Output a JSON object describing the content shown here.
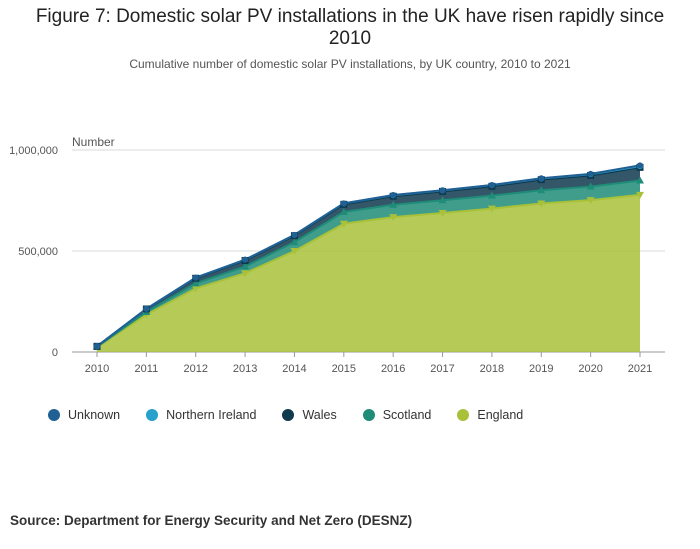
{
  "figure": {
    "title_line1": "Figure 7: Domestic solar PV installations in the UK have risen rapidly since",
    "title_line2": "2010",
    "subtitle": "Cumulative number of domestic solar PV installations, by UK country, 2010 to 2021",
    "source": "Source: Department for Energy Security and Net Zero (DESNZ)"
  },
  "chart_data": {
    "type": "area",
    "stacked": true,
    "ylabel": "Number",
    "ylim": [
      0,
      1000000
    ],
    "y_ticks": [
      0,
      500000,
      1000000
    ],
    "y_tick_labels": [
      "0",
      "500,000",
      "1,000,000"
    ],
    "x": [
      "2010",
      "2011",
      "2012",
      "2013",
      "2014",
      "2015",
      "2016",
      "2017",
      "2018",
      "2019",
      "2020",
      "2021"
    ],
    "series": [
      {
        "name": "England",
        "color": "#a8c139",
        "marker": "triangle-down",
        "values": [
          24000,
          185000,
          315000,
          390000,
          500000,
          635000,
          668000,
          688000,
          710000,
          735000,
          752000,
          778000
        ]
      },
      {
        "name": "Scotland",
        "color": "#1f8c78",
        "marker": "triangle-up",
        "values": [
          2000,
          13000,
          25000,
          33000,
          44000,
          58000,
          61000,
          63000,
          64000,
          66000,
          67000,
          71000
        ]
      },
      {
        "name": "Wales",
        "color": "#0f3a4f",
        "marker": "square",
        "values": [
          2000,
          15000,
          25000,
          30000,
          32000,
          38000,
          42000,
          44000,
          46000,
          52000,
          55000,
          65000
        ]
      },
      {
        "name": "Northern Ireland",
        "color": "#27a0cc",
        "marker": "circle",
        "values": [
          200,
          1000,
          3000,
          4000,
          4000,
          5000,
          5000,
          5000,
          6000,
          6000,
          6000,
          6000
        ]
      },
      {
        "name": "Unknown",
        "color": "#206095",
        "marker": "circle",
        "values": [
          0,
          0,
          0,
          0,
          0,
          0,
          1000,
          1000,
          1000,
          1000,
          2000,
          4000
        ]
      }
    ],
    "legend_order": [
      "Unknown",
      "Northern Ireland",
      "Wales",
      "Scotland",
      "England"
    ],
    "legend_position": "bottom-left"
  }
}
